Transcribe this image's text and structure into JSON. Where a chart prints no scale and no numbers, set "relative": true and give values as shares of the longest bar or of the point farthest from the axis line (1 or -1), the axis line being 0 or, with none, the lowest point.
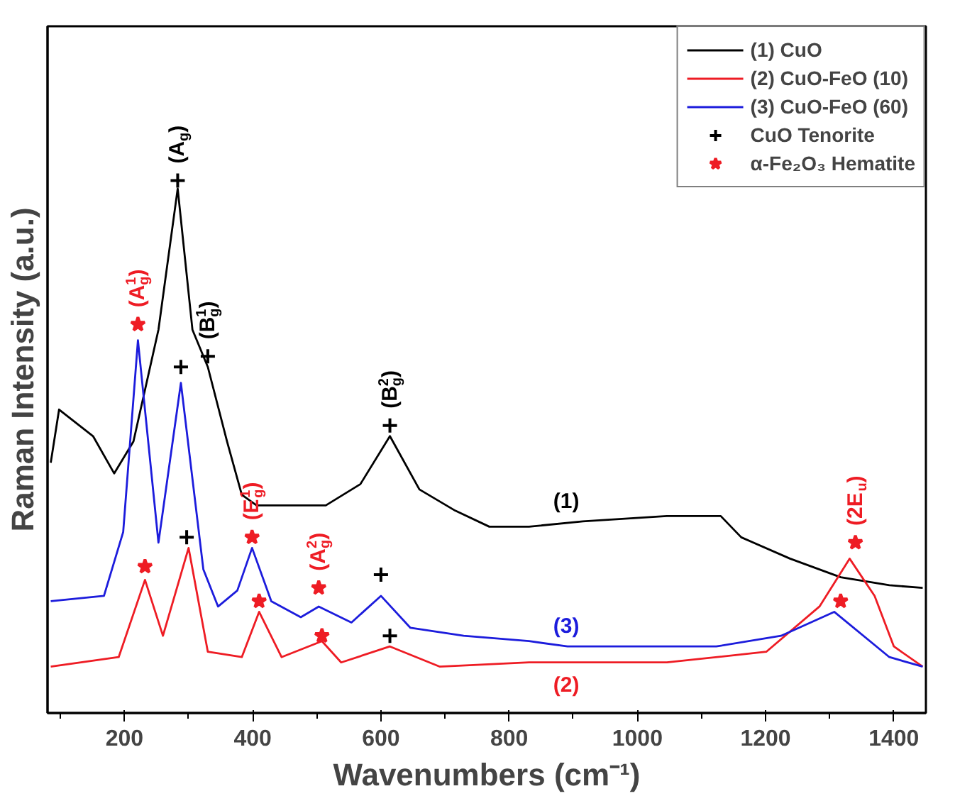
{
  "chart_data": {
    "type": "line",
    "relative": true,
    "xlabel": "Wavenumbers (cm⁻¹)",
    "ylabel": "Raman Intensity (a.u.)",
    "xlim": [
      80,
      1450
    ],
    "xticks": [
      200,
      400,
      600,
      800,
      1000,
      1200,
      1400
    ],
    "grid": false,
    "legend": "top right",
    "series": [
      {
        "name": "(1) CuO",
        "color": "#000000",
        "x": [
          85,
          98,
          151,
          184,
          214,
          253,
          283,
          306,
          330,
          360,
          383,
          406,
          461,
          514,
          568,
          614,
          660,
          716,
          769,
          831,
          915,
          1046,
          1130,
          1162,
          1238,
          1317,
          1393,
          1445
        ],
        "values": [
          0.47,
          0.57,
          0.52,
          0.45,
          0.51,
          0.72,
          0.985,
          0.72,
          0.65,
          0.51,
          0.41,
          0.39,
          0.39,
          0.39,
          0.43,
          0.52,
          0.42,
          0.38,
          0.35,
          0.35,
          0.36,
          0.37,
          0.37,
          0.33,
          0.29,
          0.255,
          0.24,
          0.235
        ]
      },
      {
        "name": "(2) CuO-FeO (10)",
        "color": "#ee1c24",
        "x": [
          85,
          191,
          232,
          260,
          300,
          330,
          383,
          410,
          445,
          508,
          538,
          614,
          692,
          831,
          891,
          1046,
          1201,
          1284,
          1331,
          1370,
          1400,
          1445
        ],
        "values": [
          0.087,
          0.105,
          0.25,
          0.145,
          0.31,
          0.115,
          0.105,
          0.19,
          0.105,
          0.135,
          0.095,
          0.125,
          0.087,
          0.095,
          0.095,
          0.095,
          0.115,
          0.2,
          0.29,
          0.22,
          0.125,
          0.087
        ]
      },
      {
        "name": "(3) CuO-FeO (60)",
        "color": "#1c1cdc",
        "x": [
          85,
          168,
          198,
          221,
          253,
          288,
          323,
          346,
          376,
          399,
          429,
          475,
          503,
          554,
          600,
          646,
          729,
          831,
          891,
          1123,
          1224,
          1307,
          1393,
          1445
        ],
        "values": [
          0.21,
          0.22,
          0.34,
          0.7,
          0.32,
          0.62,
          0.27,
          0.2,
          0.23,
          0.31,
          0.21,
          0.18,
          0.2,
          0.17,
          0.22,
          0.16,
          0.145,
          0.135,
          0.125,
          0.125,
          0.145,
          0.19,
          0.105,
          0.087
        ]
      },
      {
        "name": "CuO Tenorite",
        "type": "scatter",
        "marker": "cross",
        "color": "#000000",
        "x": [
          283,
          330,
          288,
          297,
          614,
          600,
          614
        ],
        "values": [
          1.0,
          0.67,
          0.65,
          0.33,
          0.54,
          0.26,
          0.145
        ]
      },
      {
        "name": "α-Fe₂O₃ Hematite",
        "type": "scatter",
        "marker": "star",
        "color": "#ee1c24",
        "x": [
          221,
          232,
          399,
          410,
          503,
          508,
          1317,
          1340
        ],
        "values": [
          0.73,
          0.275,
          0.33,
          0.21,
          0.235,
          0.145,
          0.21,
          0.32
        ]
      }
    ],
    "annotations": [
      {
        "text": "(A$_{g}$)",
        "x": 283,
        "y": 1.0
      },
      {
        "text": "(B$^{1}$$_{g}$)",
        "x": 330,
        "y": 0.67
      },
      {
        "text": "(B$^{2}$$_{g}$)",
        "x": 614,
        "y": 0.54
      },
      {
        "text": "(A$^{1}$$_{g}$)",
        "x": 221,
        "y": 0.73
      },
      {
        "text": "(E$^{1}$$_{g}$)",
        "x": 399,
        "y": 0.33
      },
      {
        "text": "(A$^{2}$$_{g}$)",
        "x": 503,
        "y": 0.235
      },
      {
        "text": "(2E$_{u}$)",
        "x": 1340,
        "y": 0.32
      },
      {
        "text": "(1)",
        "x": 889,
        "y": 0.36
      },
      {
        "text": "(3)",
        "x": 889,
        "y": 0.125
      },
      {
        "text": "(2)",
        "x": 889,
        "y": 0.095
      }
    ]
  }
}
